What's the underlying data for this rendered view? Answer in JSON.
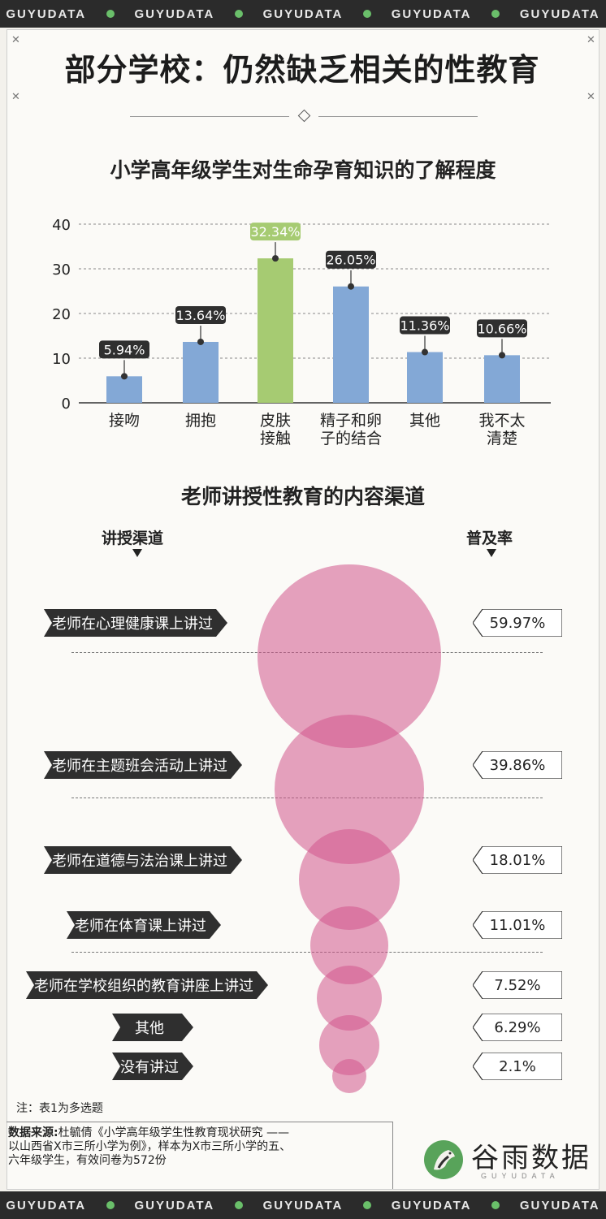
{
  "brand_band": [
    "GUYUDATA",
    "GUYUDATA",
    "GUYUDATA",
    "GUYUDATA",
    "GUYUDATA"
  ],
  "header": {
    "title": "部分学校：仍然缺乏相关的性教育"
  },
  "section1": {
    "title": "小学高年级学生对生命孕育知识的了解程度"
  },
  "section2": {
    "title": "老师讲授性教育的内容渠道",
    "left_header": "讲授渠道",
    "right_header": "普及率"
  },
  "colors": {
    "bar": "#83a8d6",
    "highlight": "#a6cb72",
    "bubble": "#d2558c",
    "dark": "#2f2f2f",
    "logo_green": "#58a35a"
  },
  "chart_data": [
    {
      "type": "bar",
      "title": "小学高年级学生对生命孕育知识的了解程度",
      "categories": [
        [
          "接吻"
        ],
        [
          "拥抱"
        ],
        [
          "皮肤",
          "接触"
        ],
        [
          "精子和卵",
          "子的结合"
        ],
        [
          "其他"
        ],
        [
          "我不太",
          "清楚"
        ]
      ],
      "values": [
        5.94,
        13.64,
        32.34,
        26.05,
        11.36,
        10.66
      ],
      "labels": [
        "5.94%",
        "13.64%",
        "32.34%",
        "26.05%",
        "11.36%",
        "10.66%"
      ],
      "highlight_index": 2,
      "ylim": [
        0,
        40
      ],
      "yticks": [
        0,
        10,
        20,
        30,
        40
      ],
      "grid": true
    },
    {
      "type": "bubble",
      "title": "老师讲授性教育的内容渠道",
      "categories": [
        "老师在心理健康课上讲过",
        "老师在主题班会活动上讲过",
        "老师在道德与法治课上讲过",
        "老师在体育课上讲过",
        "老师在学校组织的教育讲座上讲过",
        "其他",
        "没有讲过"
      ],
      "values": [
        59.97,
        39.86,
        18.01,
        11.01,
        7.52,
        6.29,
        2.1
      ],
      "labels": [
        "59.97%",
        "39.86%",
        "18.01%",
        "11.01%",
        "7.52%",
        "6.29%",
        "2.1%"
      ]
    }
  ],
  "footer": {
    "note": "注：表1为多选题",
    "source_label": "数据来源:",
    "source_lines": [
      "杜毓倩《小学高年级学生性教育现状研究 ——",
      "以山西省X市三所小学为例》，样本为X市三所小学的五、",
      "六年级学生，有效问卷为572份"
    ],
    "logo_text": "谷雨数据",
    "logo_sub": "GUYUDATA"
  }
}
